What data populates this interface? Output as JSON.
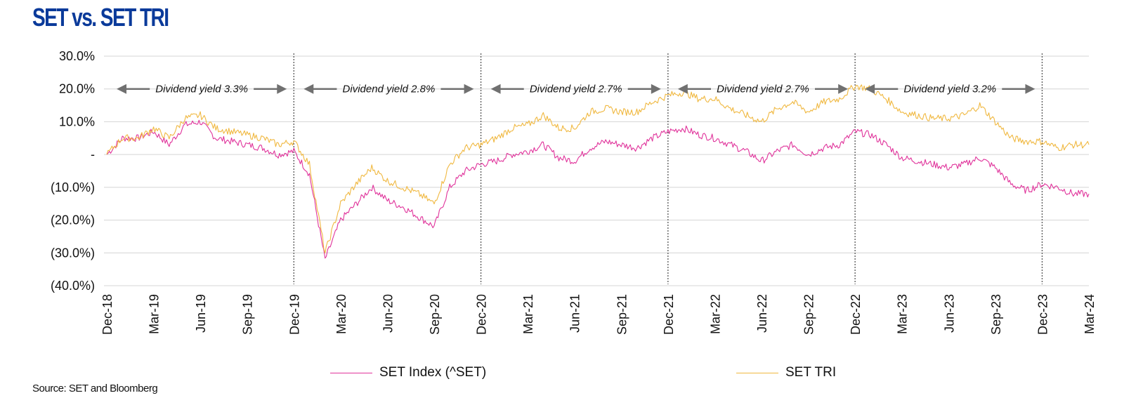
{
  "title": "SET vs. SET TRI",
  "source": "Source: SET and Bloomberg",
  "legend": [
    {
      "name": "SET Index (^SET)",
      "color": "#e0339b"
    },
    {
      "name": "SET TRI",
      "color": "#f0b840"
    }
  ],
  "chart_data": {
    "type": "line",
    "title": "SET vs. SET TRI",
    "xlabel": "",
    "ylabel": "",
    "ylim": [
      -40,
      30
    ],
    "yticks": [
      30,
      20,
      10,
      0,
      -10,
      -20,
      -30,
      -40
    ],
    "ytick_labels": [
      "30.0%",
      "20.0%",
      "10.0%",
      "-",
      "(10.0%)",
      "(20.0%)",
      "(30.0%)",
      "(40.0%)"
    ],
    "xtick_labels": [
      "Dec-18",
      "Mar-19",
      "Jun-19",
      "Sep-19",
      "Dec-19",
      "Mar-20",
      "Jun-20",
      "Sep-20",
      "Dec-20",
      "Mar-21",
      "Jun-21",
      "Sep-21",
      "Dec-21",
      "Mar-22",
      "Jun-22",
      "Sep-22",
      "Dec-22",
      "Mar-23",
      "Jun-23",
      "Sep-23",
      "Dec-23",
      "Mar-24"
    ],
    "x_unit": "months since Dec-18",
    "xlim": [
      0,
      63
    ],
    "grid": true,
    "legend_position": "bottom",
    "period_markers": [
      "Dec-19",
      "Dec-20",
      "Dec-21",
      "Dec-22",
      "Dec-23"
    ],
    "annotations": [
      {
        "text": "Dividend yield 3.3%",
        "from": "Dec-18",
        "to": "Dec-19",
        "y": 20
      },
      {
        "text": "Dividend yield 2.8%",
        "from": "Dec-19",
        "to": "Dec-20",
        "y": 20
      },
      {
        "text": "Dividend yield 2.7%",
        "from": "Dec-20",
        "to": "Dec-21",
        "y": 20
      },
      {
        "text": "Dividend yield 2.7%",
        "from": "Dec-21",
        "to": "Dec-22",
        "y": 20
      },
      {
        "text": "Dividend yield 3.2%",
        "from": "Dec-22",
        "to": "Dec-23",
        "y": 20
      }
    ],
    "x": [
      0,
      1,
      2,
      3,
      4,
      5,
      6,
      7,
      8,
      9,
      10,
      11,
      12,
      13,
      14,
      15,
      16,
      17,
      18,
      19,
      20,
      21,
      22,
      23,
      24,
      25,
      26,
      27,
      28,
      29,
      30,
      31,
      32,
      33,
      34,
      35,
      36,
      37,
      38,
      39,
      40,
      41,
      42,
      43,
      44,
      45,
      46,
      47,
      48,
      49,
      50,
      51,
      52,
      53,
      54,
      55,
      56,
      57,
      58,
      59,
      60,
      61,
      62,
      63
    ],
    "series": [
      {
        "name": "SET Index (^SET)",
        "color": "#e0339b",
        "values": [
          0,
          5,
          5,
          7,
          3,
          9,
          10,
          5,
          4,
          3,
          2,
          0,
          1,
          -6,
          -32,
          -20,
          -15,
          -10,
          -14,
          -16,
          -19,
          -22,
          -10,
          -5,
          -3,
          -2,
          0,
          1,
          3,
          -1,
          -2,
          2,
          4,
          3,
          2,
          5,
          7,
          8,
          6,
          5,
          3,
          1,
          -2,
          1,
          3,
          0,
          2,
          3,
          7,
          6,
          3,
          -1,
          -2,
          -3,
          -4,
          -3,
          -1,
          -4,
          -9,
          -11,
          -9,
          -10,
          -12,
          -12
        ]
      },
      {
        "name": "SET TRI",
        "color": "#f0b840",
        "values": [
          0,
          5,
          5,
          8,
          5,
          11,
          12,
          8,
          7,
          6,
          5,
          3,
          4,
          -3,
          -30,
          -15,
          -9,
          -4,
          -8,
          -10,
          -12,
          -15,
          -3,
          2,
          3,
          5,
          8,
          9,
          12,
          8,
          8,
          13,
          14,
          13,
          13,
          16,
          18,
          19,
          17,
          17,
          14,
          12,
          10,
          14,
          16,
          13,
          16,
          17,
          21,
          20,
          17,
          13,
          12,
          11,
          11,
          12,
          15,
          10,
          5,
          4,
          4,
          2,
          3,
          3
        ]
      }
    ]
  }
}
